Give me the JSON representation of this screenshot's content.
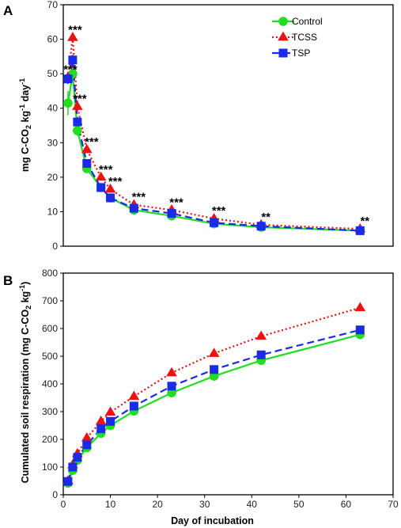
{
  "colors": {
    "Control": "#22dd22",
    "TCSS": "#ee1111",
    "TSP": "#1a2be8"
  },
  "chart_data": [
    {
      "type": "line",
      "panel_label": "A",
      "xlabel": "",
      "ylabel_parts": [
        "mg C-CO",
        "2",
        " kg",
        "-1",
        " day",
        "-1"
      ],
      "xlim": [
        0,
        70
      ],
      "ylim": [
        0,
        70
      ],
      "xticks": [],
      "yticks": [
        0,
        10,
        20,
        30,
        40,
        50,
        60,
        70
      ],
      "grid": false,
      "legend_position": "top-right",
      "x": [
        1,
        2,
        3,
        5,
        8,
        10,
        15,
        23,
        32,
        42,
        63
      ],
      "series": [
        {
          "name": "Control",
          "marker": "circle",
          "line": "solid",
          "values": [
            41.5,
            50,
            33.5,
            22.5,
            17,
            14,
            10.5,
            8.8,
            6.5,
            5.5,
            4.5
          ],
          "errors": [
            3.5,
            2,
            1.5,
            1,
            1,
            0.8,
            0.6,
            0.5,
            0.5,
            0.4,
            0.3
          ]
        },
        {
          "name": "TCSS",
          "marker": "triangle",
          "line": "dotted",
          "values": [
            49,
            60.5,
            40.5,
            28,
            20,
            16.5,
            12,
            10.5,
            8,
            6.2,
            5
          ],
          "errors": [
            1.5,
            1.5,
            1.5,
            1,
            0.8,
            0.8,
            0.6,
            0.6,
            0.5,
            0.4,
            0.3
          ]
        },
        {
          "name": "TSP",
          "marker": "square",
          "line": "dashed",
          "values": [
            48.5,
            54,
            36,
            24,
            17,
            14,
            11,
            9.5,
            6.8,
            5.8,
            4.5
          ],
          "errors": [
            1.5,
            1.5,
            1.5,
            1,
            0.8,
            0.6,
            0.6,
            0.5,
            0.4,
            0.3,
            0.3
          ]
        }
      ],
      "annotations": [
        {
          "x": 1,
          "y": 49,
          "text": "***"
        },
        {
          "x": 2,
          "y": 60.5,
          "text": "***"
        },
        {
          "x": 3,
          "y": 40.5,
          "text": "***"
        },
        {
          "x": 5,
          "y": 28,
          "text": "***"
        },
        {
          "x": 8,
          "y": 20,
          "text": "***"
        },
        {
          "x": 10,
          "y": 16.5,
          "text": "***"
        },
        {
          "x": 15,
          "y": 12,
          "text": "***"
        },
        {
          "x": 23,
          "y": 10.5,
          "text": "***"
        },
        {
          "x": 32,
          "y": 8,
          "text": "***"
        },
        {
          "x": 42,
          "y": 6.2,
          "text": "**"
        },
        {
          "x": 63,
          "y": 5,
          "text": "**"
        }
      ]
    },
    {
      "type": "line",
      "panel_label": "B",
      "xlabel": "Day of incubation",
      "ylabel_parts": [
        "Cumulated soil respiration (mg C-CO",
        "2",
        " kg",
        "-1",
        ")"
      ],
      "xlim": [
        0,
        70
      ],
      "ylim": [
        0,
        800
      ],
      "xticks": [
        0,
        10,
        20,
        30,
        40,
        50,
        60,
        70
      ],
      "yticks": [
        0,
        100,
        200,
        300,
        400,
        500,
        600,
        700,
        800
      ],
      "grid": false,
      "x": [
        1,
        2,
        3,
        5,
        8,
        10,
        15,
        23,
        32,
        42,
        63
      ],
      "series": [
        {
          "name": "Control",
          "marker": "circle",
          "line": "solid",
          "values": [
            42,
            88,
            125,
            170,
            222,
            250,
            302,
            368,
            428,
            485,
            578
          ]
        },
        {
          "name": "TCSS",
          "marker": "triangle",
          "line": "dotted",
          "values": [
            50,
            108,
            148,
            205,
            265,
            298,
            355,
            440,
            510,
            572,
            675
          ]
        },
        {
          "name": "TSP",
          "marker": "square",
          "line": "dashed",
          "values": [
            48,
            100,
            135,
            180,
            238,
            265,
            320,
            392,
            452,
            505,
            595
          ]
        }
      ]
    }
  ]
}
